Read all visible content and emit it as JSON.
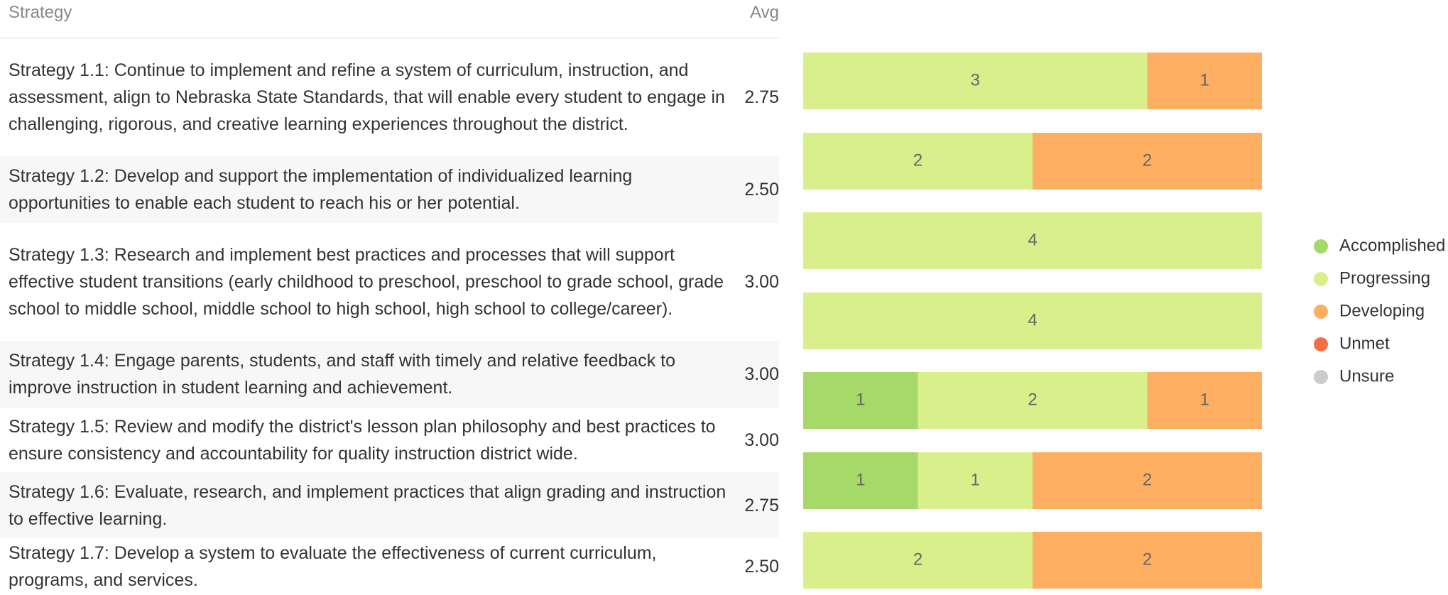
{
  "table": {
    "header": {
      "strategy": "Strategy",
      "avg": "Avg"
    },
    "rows": [
      [
        "Strategy 1.1: Continue to implement and refine a system of curriculum, instruction, and assessment, align to Nebraska State Standards, that will enable every student to engage in challenging, rigorous, and creative learning experiences throughout the district.",
        "2.75"
      ],
      [
        "Strategy 1.2: Develop and support the implementation of individualized learning opportunities to enable each student to reach his or her potential.",
        "2.50"
      ],
      [
        "Strategy 1.3: Research and implement best practices and processes that will support effective student transitions (early childhood to preschool, preschool to grade school, grade school to middle school, middle school to high school, high school to college/career).",
        "3.00"
      ],
      [
        "Strategy 1.4: Engage parents, students, and staff with timely and relative feedback to improve instruction in student learning and achievement.",
        "3.00"
      ],
      [
        "Strategy 1.5: Review and modify the district's lesson plan philosophy and best practices to ensure consistency and accountability for quality instruction district wide.",
        "3.00"
      ],
      [
        "Strategy 1.6: Evaluate, research, and implement practices that align grading and instruction to effective learning.",
        "2.75"
      ],
      [
        "Strategy 1.7: Develop a system to evaluate the effectiveness of current curriculum, programs, and services.",
        "2.50"
      ]
    ]
  },
  "chart_data": {
    "type": "stacked-barh",
    "series": [
      {
        "name": "Accomplished",
        "color": "#a6d96a",
        "values": [
          0,
          0,
          0,
          0,
          1,
          1,
          0
        ]
      },
      {
        "name": "Progressing",
        "color": "#d9ef8b",
        "values": [
          3,
          2,
          4,
          4,
          2,
          1,
          2
        ]
      },
      {
        "name": "Developing",
        "color": "#fdae61",
        "values": [
          1,
          2,
          0,
          0,
          1,
          2,
          2
        ]
      },
      {
        "name": "Unmet",
        "color": "#f46d43",
        "values": [
          0,
          0,
          0,
          0,
          0,
          0,
          0
        ]
      },
      {
        "name": "Unsure",
        "color": "#cccccc",
        "values": [
          0,
          0,
          0,
          0,
          0,
          0,
          0
        ]
      }
    ]
  }
}
